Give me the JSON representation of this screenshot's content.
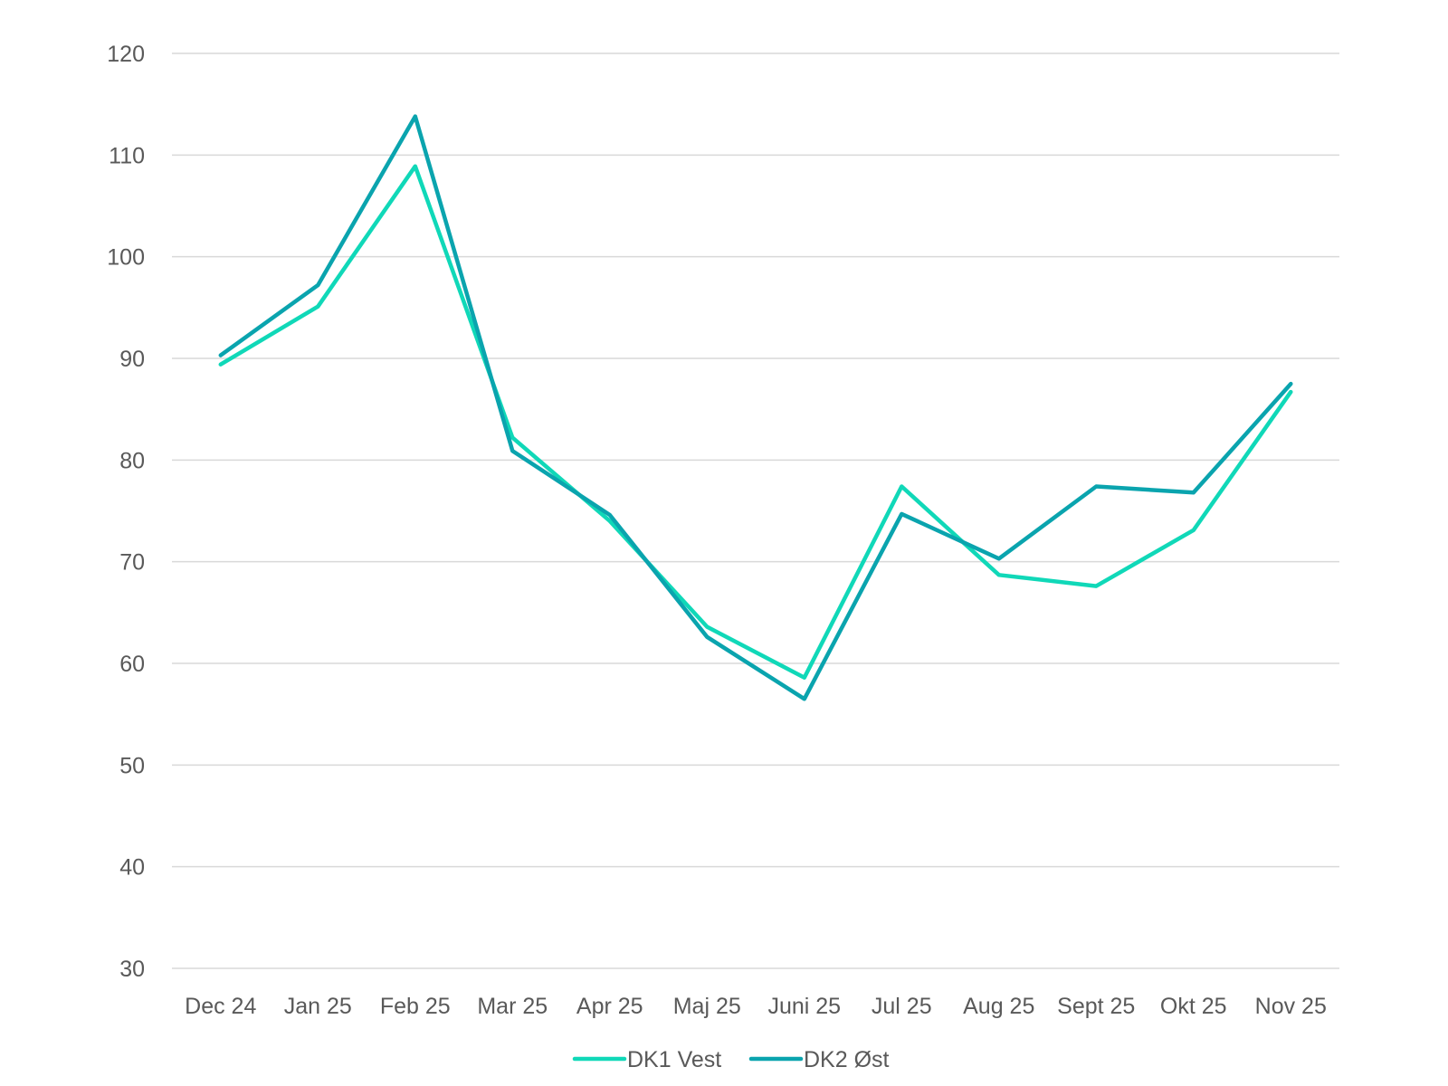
{
  "chart_data": {
    "type": "line",
    "categories": [
      "Dec 24",
      "Jan 25",
      "Feb 25",
      "Mar 25",
      "Apr 25",
      "Maj 25",
      "Juni 25",
      "Jul 25",
      "Aug 25",
      "Sept 25",
      "Okt 25",
      "Nov 25"
    ],
    "series": [
      {
        "name": "DK1 Vest",
        "color": "#10d8b8",
        "values": [
          89.4,
          95.1,
          108.9,
          82.2,
          74.0,
          63.6,
          58.6,
          77.4,
          68.7,
          67.6,
          73.1,
          86.7
        ]
      },
      {
        "name": "DK2 Øst",
        "color": "#0aa4ae",
        "values": [
          90.3,
          97.2,
          113.8,
          80.9,
          74.6,
          62.6,
          56.5,
          74.7,
          70.3,
          77.4,
          76.8,
          87.5
        ]
      }
    ],
    "title": "",
    "xlabel": "",
    "ylabel": "",
    "ylim": [
      30,
      120
    ],
    "yticks": [
      30,
      40,
      50,
      60,
      70,
      80,
      90,
      100,
      110,
      120
    ],
    "grid": true,
    "legend_position": "bottom"
  }
}
